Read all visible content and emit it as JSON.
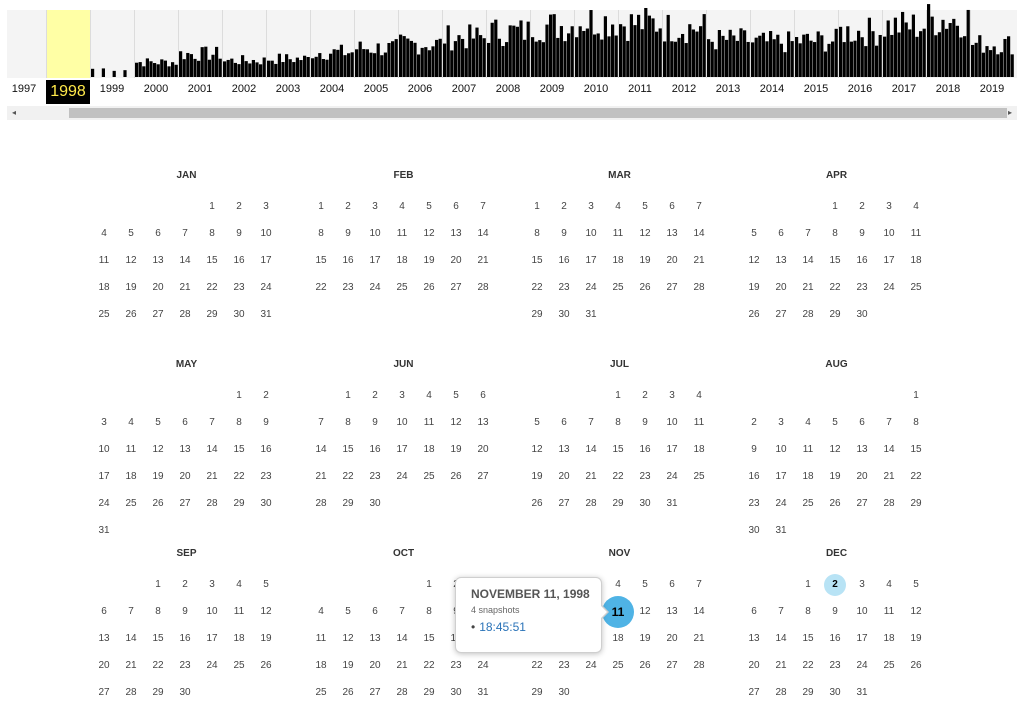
{
  "timeline": {
    "years": [
      "1997",
      "1998",
      "1999",
      "2000",
      "2001",
      "2002",
      "2003",
      "2004",
      "2005",
      "2006",
      "2007",
      "2008",
      "2009",
      "2010",
      "2011",
      "2012",
      "2013",
      "2014",
      "2015",
      "2016",
      "2017",
      "2018",
      "2019"
    ],
    "selected_year": "1998",
    "scroll_left_arrow": "◂",
    "scroll_right_arrow": "▸",
    "bar_color": "#000000",
    "highlight_color": "#ffffa5"
  },
  "calendar": {
    "weekday_start": "Sunday",
    "months": [
      {
        "name": "JAN",
        "start": 4,
        "days": 31
      },
      {
        "name": "FEB",
        "start": 0,
        "days": 28
      },
      {
        "name": "MAR",
        "start": 0,
        "days": 31
      },
      {
        "name": "APR",
        "start": 3,
        "days": 30
      },
      {
        "name": "MAY",
        "start": 5,
        "days": 31
      },
      {
        "name": "JUN",
        "start": 1,
        "days": 30
      },
      {
        "name": "JUL",
        "start": 3,
        "days": 31
      },
      {
        "name": "AUG",
        "start": 6,
        "days": 31
      },
      {
        "name": "SEP",
        "start": 2,
        "days": 30
      },
      {
        "name": "OCT",
        "start": 4,
        "days": 31
      },
      {
        "name": "NOV",
        "start": 0,
        "days": 30
      },
      {
        "name": "DEC",
        "start": 2,
        "days": 31
      }
    ],
    "captures": [
      {
        "month": "DEC",
        "day": 2
      }
    ],
    "selected": {
      "month": "NOV",
      "day": 11
    }
  },
  "popup": {
    "date": "NOVEMBER 11, 1998",
    "count": "4 snapshots",
    "bullet": "•",
    "time": "18:45:51"
  }
}
